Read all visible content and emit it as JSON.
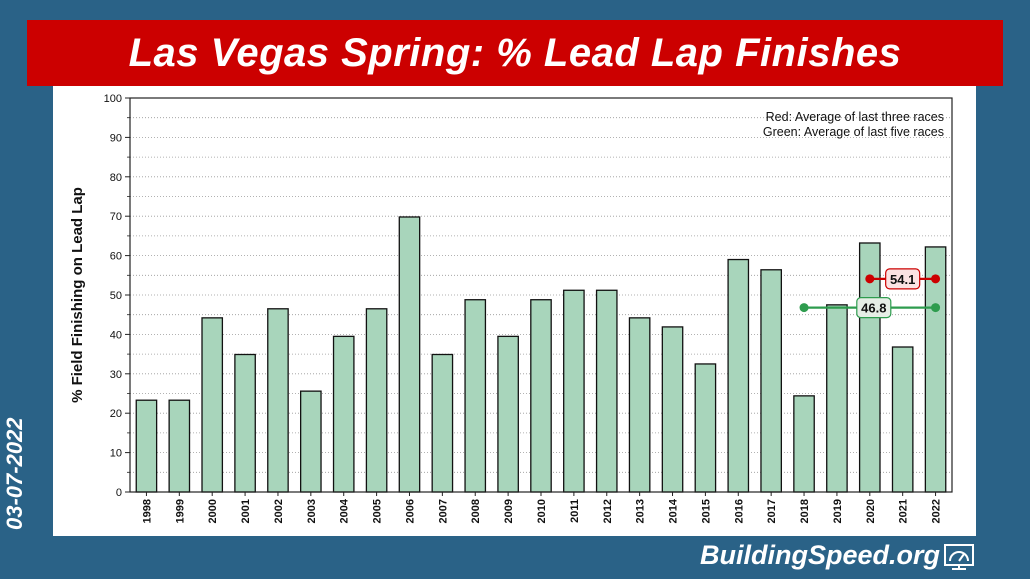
{
  "title": "Las Vegas  Spring: % Lead Lap Finishes",
  "date": "03-07-2022",
  "brand": "BuildingSpeed.org",
  "icons": {
    "brand_icon": "speedometer-icon"
  },
  "colors": {
    "bar_fill": "#a8d5bb",
    "red_avg": "#cc0000",
    "green_avg": "#2e9c4e",
    "banner": "#cc0000",
    "background": "#2a6287"
  },
  "chart_data": {
    "type": "bar",
    "categories": [
      "1998",
      "1999",
      "2000",
      "2001",
      "2002",
      "2003",
      "2004",
      "2005",
      "2006",
      "2007",
      "2008",
      "2009",
      "2010",
      "2011",
      "2012",
      "2013",
      "2014",
      "2015",
      "2016",
      "2017",
      "2018",
      "2019",
      "2020",
      "2021",
      "2022"
    ],
    "values": [
      23.3,
      23.3,
      44.2,
      34.9,
      46.5,
      25.6,
      39.5,
      46.5,
      69.8,
      34.9,
      48.8,
      39.5,
      48.8,
      51.2,
      51.2,
      44.2,
      41.9,
      32.5,
      59.0,
      56.4,
      24.4,
      47.5,
      63.2,
      36.8,
      62.2
    ],
    "ylabel": "% Field Finishing on Lead Lap",
    "xlabel": "",
    "ylim": [
      0,
      100
    ],
    "yticks": [
      0,
      10,
      20,
      30,
      40,
      50,
      60,
      70,
      80,
      90,
      100
    ],
    "grid": true,
    "legend_lines": [
      "Red: Average of last three races",
      "Green: Average of last five races"
    ],
    "legend_position": "top-right",
    "annotations": [
      {
        "label": "54.1",
        "value": 54.1,
        "from": "2020",
        "to": "2022",
        "color": "red"
      },
      {
        "label": "46.8",
        "value": 46.8,
        "from": "2018",
        "to": "2022",
        "color": "green"
      }
    ]
  }
}
